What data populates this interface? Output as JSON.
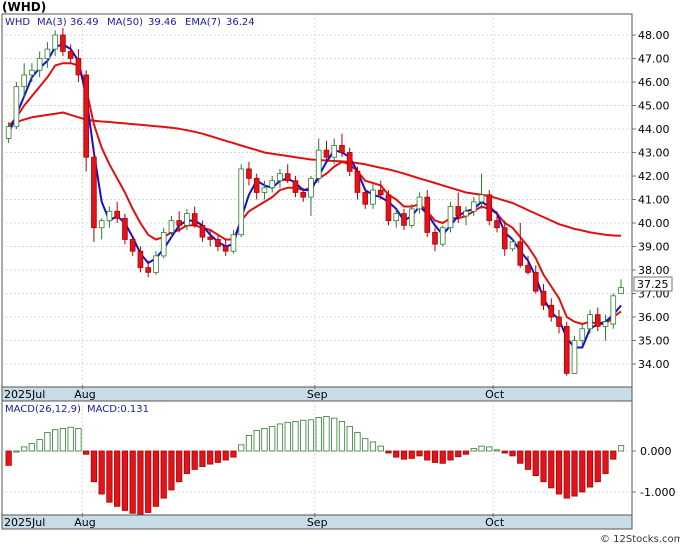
{
  "ticker_title": "(WHD)",
  "legend": {
    "symbol": "WHD",
    "ma3": "MA(3)",
    "ma3_value": "36.49",
    "ma50": "MA(50)",
    "ma50_value": "39.46",
    "ema7": "EMA(7)",
    "ema7_value": "36.24"
  },
  "last_price_label": "37.25",
  "macd_legend": {
    "label": "MACD(26,12,9)",
    "value_label": "MACD:0.131"
  },
  "watermark": "© 12Stocks.com",
  "month_labels": [
    "2025Jul",
    "Aug",
    "Sep",
    "Oct"
  ],
  "colors": {
    "up": "#ffffff",
    "up_border": "#2e7d2e",
    "down": "#e0141a",
    "down_border": "#b00000",
    "ma3": "#1010d0",
    "ma50": "#e01010",
    "ema7": "#e01010",
    "axis_band": "#c8dce8",
    "grid": "#cccccc"
  },
  "chart_data": [
    {
      "type": "candlestick",
      "title": "(WHD)",
      "ylim": [
        33.3,
        48.6
      ],
      "y_ticks": [
        "48.00",
        "47.00",
        "46.00",
        "45.00",
        "44.00",
        "43.00",
        "42.00",
        "41.00",
        "40.00",
        "39.00",
        "38.00",
        "37.00",
        "36.00",
        "35.00",
        "34.00"
      ],
      "x_labels": [
        "2025Jul",
        "Aug",
        "Sep",
        "Oct"
      ],
      "grid": true,
      "last_price": 37.25,
      "candles": [
        [
          43.6,
          44.3,
          43.4,
          44.1
        ],
        [
          44.1,
          46.0,
          44.0,
          45.8
        ],
        [
          45.8,
          46.8,
          45.3,
          46.3
        ],
        [
          46.3,
          46.8,
          46.0,
          46.5
        ],
        [
          46.5,
          47.3,
          46.2,
          47.0
        ],
        [
          47.0,
          47.7,
          46.6,
          47.4
        ],
        [
          47.4,
          48.2,
          47.1,
          48.0
        ],
        [
          48.0,
          48.3,
          47.1,
          47.3
        ],
        [
          47.3,
          47.6,
          46.8,
          47.0
        ],
        [
          47.0,
          47.4,
          46.0,
          46.3
        ],
        [
          46.3,
          46.5,
          42.2,
          42.8
        ],
        [
          42.8,
          43.2,
          39.2,
          39.8
        ],
        [
          39.8,
          40.2,
          39.3,
          40.1
        ],
        [
          40.1,
          40.7,
          39.8,
          40.5
        ],
        [
          40.5,
          40.9,
          40.0,
          40.2
        ],
        [
          40.2,
          40.4,
          39.1,
          39.3
        ],
        [
          39.3,
          39.4,
          38.6,
          38.8
        ],
        [
          38.8,
          39.0,
          37.9,
          38.1
        ],
        [
          38.1,
          38.4,
          37.7,
          37.9
        ],
        [
          37.9,
          38.8,
          37.8,
          38.6
        ],
        [
          38.6,
          39.8,
          38.5,
          39.6
        ],
        [
          39.6,
          40.3,
          39.4,
          40.1
        ],
        [
          40.1,
          40.5,
          39.6,
          39.9
        ],
        [
          39.9,
          40.6,
          39.7,
          40.4
        ],
        [
          40.4,
          40.7,
          39.8,
          39.9
        ],
        [
          39.9,
          40.1,
          39.2,
          39.4
        ],
        [
          39.4,
          39.7,
          39.0,
          39.3
        ],
        [
          39.3,
          39.5,
          38.8,
          39.0
        ],
        [
          39.0,
          39.3,
          38.6,
          38.8
        ],
        [
          38.8,
          39.7,
          38.7,
          39.5
        ],
        [
          39.5,
          42.5,
          39.4,
          42.3
        ],
        [
          42.3,
          42.6,
          41.6,
          41.9
        ],
        [
          41.9,
          42.1,
          41.0,
          41.3
        ],
        [
          41.3,
          41.8,
          41.0,
          41.5
        ],
        [
          41.5,
          42.0,
          41.3,
          41.8
        ],
        [
          41.8,
          42.3,
          41.5,
          42.1
        ],
        [
          42.1,
          42.5,
          41.7,
          41.8
        ],
        [
          41.8,
          42.0,
          41.1,
          41.3
        ],
        [
          41.3,
          41.5,
          40.9,
          41.1
        ],
        [
          41.1,
          42.0,
          40.3,
          41.9
        ],
        [
          41.9,
          43.6,
          41.7,
          43.1
        ],
        [
          43.1,
          43.5,
          42.6,
          42.8
        ],
        [
          42.8,
          43.6,
          42.5,
          43.3
        ],
        [
          43.3,
          43.8,
          42.8,
          43.0
        ],
        [
          43.0,
          43.2,
          42.0,
          42.2
        ],
        [
          42.2,
          42.4,
          41.0,
          41.3
        ],
        [
          41.3,
          41.5,
          40.6,
          40.8
        ],
        [
          40.8,
          41.7,
          40.6,
          41.4
        ],
        [
          41.4,
          41.8,
          41.0,
          41.2
        ],
        [
          41.2,
          41.4,
          39.9,
          40.1
        ],
        [
          40.1,
          40.6,
          39.8,
          40.4
        ],
        [
          40.4,
          40.6,
          39.7,
          39.9
        ],
        [
          39.9,
          40.8,
          39.8,
          40.6
        ],
        [
          40.6,
          41.3,
          40.4,
          41.1
        ],
        [
          41.1,
          41.4,
          39.4,
          39.6
        ],
        [
          39.6,
          39.8,
          38.8,
          39.1
        ],
        [
          39.1,
          39.9,
          39.0,
          39.8
        ],
        [
          39.8,
          40.9,
          39.6,
          40.7
        ],
        [
          40.7,
          41.3,
          40.0,
          40.3
        ],
        [
          40.3,
          40.7,
          39.9,
          40.5
        ],
        [
          40.5,
          41.1,
          40.3,
          40.9
        ],
        [
          40.9,
          42.1,
          40.6,
          41.2
        ],
        [
          41.2,
          41.4,
          39.9,
          40.1
        ],
        [
          40.1,
          40.5,
          39.6,
          39.8
        ],
        [
          39.8,
          40.1,
          38.6,
          38.9
        ],
        [
          38.9,
          39.3,
          38.8,
          39.2
        ],
        [
          39.2,
          40.0,
          38.1,
          38.2
        ],
        [
          38.2,
          38.6,
          37.8,
          37.9
        ],
        [
          37.9,
          38.2,
          37.0,
          37.1
        ],
        [
          37.1,
          37.4,
          36.3,
          36.5
        ],
        [
          36.5,
          36.8,
          35.8,
          36.0
        ],
        [
          36.0,
          36.3,
          35.3,
          35.6
        ],
        [
          35.6,
          35.8,
          33.5,
          33.6
        ],
        [
          33.6,
          35.2,
          33.6,
          35.0
        ],
        [
          35.0,
          35.7,
          34.8,
          35.5
        ],
        [
          35.5,
          36.3,
          35.3,
          36.1
        ],
        [
          36.1,
          36.4,
          35.4,
          35.6
        ],
        [
          35.6,
          36.1,
          35.0,
          35.8
        ],
        [
          35.7,
          37.0,
          35.5,
          36.9
        ],
        [
          37.0,
          37.6,
          37.0,
          37.25
        ]
      ],
      "ma3": [
        43.8,
        44.6,
        45.4,
        46.2,
        46.6,
        46.9,
        47.5,
        47.6,
        47.4,
        46.9,
        45.4,
        43.0,
        40.9,
        40.1,
        40.3,
        40.0,
        39.4,
        38.7,
        38.3,
        38.5,
        38.9,
        39.4,
        39.9,
        40.1,
        40.1,
        39.9,
        39.5,
        39.2,
        39.0,
        39.1,
        40.2,
        41.2,
        41.8,
        41.6,
        41.5,
        41.8,
        41.9,
        41.7,
        41.4,
        41.4,
        42.0,
        42.6,
        43.1,
        43.0,
        42.8,
        42.2,
        41.4,
        41.2,
        41.1,
        40.9,
        40.6,
        40.1,
        40.3,
        40.7,
        40.4,
        39.9,
        39.5,
        39.9,
        40.3,
        40.5,
        40.6,
        40.9,
        40.7,
        40.4,
        39.6,
        39.3,
        38.8,
        38.4,
        37.7,
        36.8,
        36.2,
        35.9,
        35.1,
        34.7,
        34.7,
        35.5,
        35.7,
        35.8,
        36.1,
        36.49
      ],
      "ma50": [
        44.2,
        44.3,
        44.4,
        44.5,
        44.55,
        44.6,
        44.65,
        44.7,
        44.6,
        44.5,
        44.4,
        44.35,
        44.32,
        44.3,
        44.27,
        44.24,
        44.21,
        44.18,
        44.15,
        44.12,
        44.09,
        44.05,
        44.01,
        43.95,
        43.88,
        43.8,
        43.7,
        43.6,
        43.5,
        43.4,
        43.3,
        43.2,
        43.1,
        43.0,
        42.95,
        42.9,
        42.85,
        42.8,
        42.75,
        42.7,
        42.68,
        42.66,
        42.64,
        42.62,
        42.6,
        42.55,
        42.5,
        42.42,
        42.35,
        42.28,
        42.2,
        42.1,
        42.0,
        41.9,
        41.8,
        41.7,
        41.6,
        41.5,
        41.4,
        41.3,
        41.25,
        41.2,
        41.15,
        41.05,
        40.95,
        40.85,
        40.7,
        40.55,
        40.4,
        40.25,
        40.1,
        39.95,
        39.85,
        39.75,
        39.68,
        39.6,
        39.55,
        39.5,
        39.47,
        39.46
      ],
      "ema7": [
        44.1,
        44.5,
        45.0,
        45.4,
        45.8,
        46.2,
        46.7,
        46.8,
        46.8,
        46.7,
        45.7,
        44.2,
        43.2,
        42.5,
        41.9,
        41.3,
        40.6,
        40.0,
        39.5,
        39.3,
        39.4,
        39.6,
        39.7,
        39.9,
        39.9,
        39.8,
        39.7,
        39.5,
        39.3,
        39.3,
        40.1,
        40.5,
        40.7,
        40.9,
        41.1,
        41.4,
        41.5,
        41.5,
        41.4,
        41.5,
        41.9,
        42.1,
        42.4,
        42.6,
        42.5,
        42.2,
        41.8,
        41.7,
        41.6,
        41.2,
        41.0,
        40.7,
        40.7,
        40.8,
        40.5,
        40.1,
        40.0,
        40.2,
        40.2,
        40.3,
        40.5,
        40.7,
        40.6,
        40.4,
        40.0,
        39.8,
        39.4,
        39.0,
        38.5,
        37.8,
        37.3,
        36.8,
        36.0,
        35.8,
        35.7,
        35.8,
        35.7,
        35.7,
        36.0,
        36.24
      ]
    },
    {
      "type": "bar",
      "title": "MACD(26,12,9)",
      "series_name": "MACD",
      "last_value_label": "MACD:0.131",
      "ylim": [
        -1.6,
        0.9
      ],
      "y_ticks": [
        "0.000",
        "-1.000"
      ],
      "x_labels": [
        "2025Jul",
        "Aug",
        "Sep",
        "Oct"
      ],
      "values": [
        -0.35,
        0.0,
        0.1,
        0.18,
        0.28,
        0.45,
        0.52,
        0.55,
        0.58,
        0.55,
        -0.08,
        -0.75,
        -1.05,
        -1.25,
        -1.35,
        -1.45,
        -1.52,
        -1.55,
        -1.5,
        -1.35,
        -1.15,
        -0.95,
        -0.75,
        -0.55,
        -0.45,
        -0.38,
        -0.32,
        -0.28,
        -0.22,
        -0.15,
        0.15,
        0.38,
        0.5,
        0.55,
        0.6,
        0.66,
        0.7,
        0.72,
        0.75,
        0.76,
        0.82,
        0.84,
        0.8,
        0.72,
        0.6,
        0.45,
        0.3,
        0.22,
        0.12,
        -0.05,
        -0.15,
        -0.2,
        -0.18,
        -0.12,
        -0.22,
        -0.28,
        -0.3,
        -0.22,
        -0.14,
        -0.08,
        0.06,
        0.12,
        0.1,
        0.03,
        -0.05,
        -0.12,
        -0.3,
        -0.45,
        -0.6,
        -0.75,
        -0.9,
        -1.05,
        -1.15,
        -1.1,
        -1.0,
        -0.88,
        -0.75,
        -0.55,
        -0.2,
        0.131
      ]
    }
  ]
}
